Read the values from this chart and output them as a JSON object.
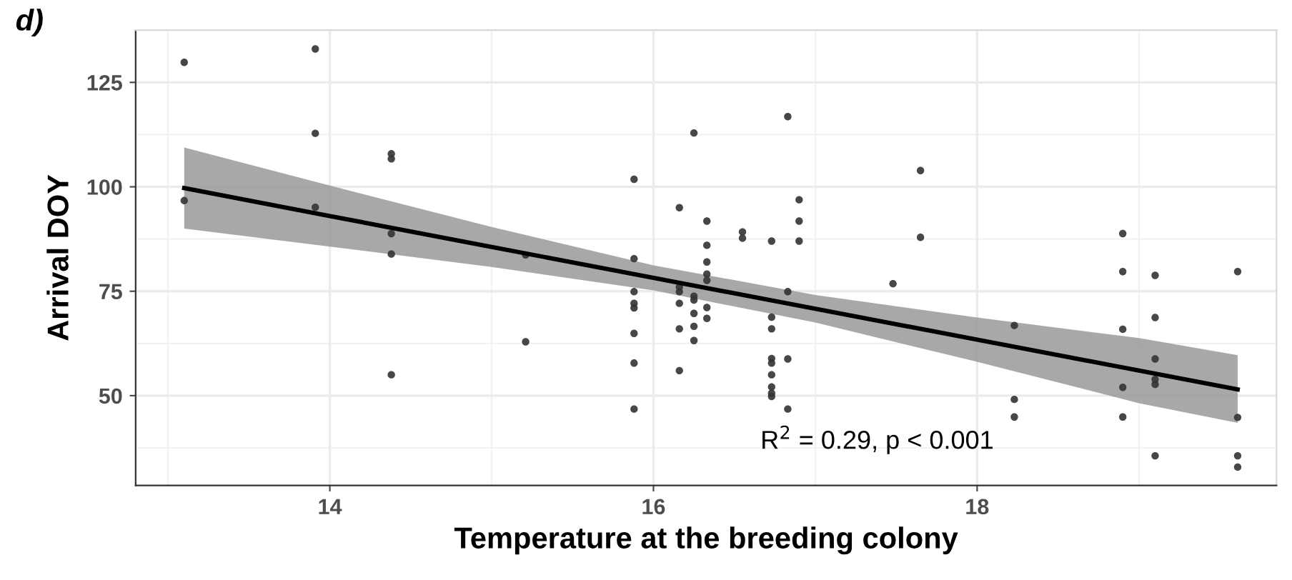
{
  "chart_data": {
    "type": "scatter",
    "title": "d)",
    "xlabel": "Temperature at the breeding colony",
    "ylabel": "Arrival DOY",
    "annotations": [
      "R$^{2}$ = 0.29, p < 0.001"
    ],
    "xlim": [
      12.8,
      19.85
    ],
    "ylim": [
      28.5,
      137.5
    ],
    "xticks": [
      14,
      16,
      18
    ],
    "yticks": [
      50,
      75,
      100,
      125
    ],
    "grid": true,
    "marker": "circle",
    "legend": false,
    "series": [
      {
        "color": "#333333",
        "x": [
          13.1,
          13.91,
          13.91,
          14.38,
          14.38,
          13.1,
          13.91,
          14.38,
          14.38,
          15.21,
          15.21,
          14.38,
          15.88,
          15.88,
          15.88,
          15.88,
          15.88,
          15.88,
          15.88,
          15.88,
          16.16,
          16.16,
          16.16,
          16.16,
          16.16,
          16.16,
          16.25,
          16.25,
          16.25,
          16.25,
          16.25,
          16.25,
          16.33,
          16.33,
          16.33,
          16.33,
          16.33,
          16.33,
          16.33,
          16.55,
          16.55,
          16.73,
          16.73,
          16.73,
          16.73,
          16.73,
          16.73,
          16.73,
          16.73,
          16.73,
          16.83,
          16.83,
          16.83,
          16.83,
          16.9,
          16.9,
          16.9,
          17.48,
          17.65,
          17.65,
          18.23,
          18.23,
          18.23,
          18.9,
          18.9,
          18.9,
          18.9,
          18.9,
          19.1,
          19.1,
          19.1,
          19.1,
          19.1,
          19.1,
          19.61,
          19.61,
          19.61,
          19.61
        ],
        "values": [
          129.8,
          133.0,
          112.8,
          107.9,
          106.7,
          96.7,
          95.1,
          88.8,
          83.9,
          83.7,
          62.9,
          55.0,
          101.8,
          82.8,
          74.9,
          72.1,
          71.0,
          64.9,
          57.8,
          46.8,
          95.0,
          76.0,
          74.9,
          72.1,
          66.0,
          56.0,
          112.9,
          73.8,
          72.9,
          69.7,
          66.6,
          63.2,
          91.8,
          86.0,
          82.0,
          79.1,
          77.6,
          71.1,
          68.5,
          89.2,
          87.7,
          87.0,
          68.8,
          66.0,
          58.9,
          57.8,
          55.0,
          52.1,
          50.6,
          49.8,
          116.8,
          74.9,
          58.8,
          46.8,
          96.9,
          91.8,
          87.0,
          76.8,
          103.9,
          87.9,
          66.8,
          49.1,
          44.9,
          88.8,
          79.7,
          65.9,
          52.0,
          44.9,
          78.8,
          68.7,
          58.8,
          53.9,
          52.7,
          35.6,
          79.7,
          44.8,
          35.6,
          32.9
        ]
      },
      {
        "type": "line",
        "color": "#000000",
        "marker": "none",
        "line_style": "solid",
        "x": [
          13.1,
          14,
          15,
          16,
          17,
          18,
          19,
          19.61
        ],
        "values": [
          99.7,
          93.0,
          85.6,
          78.2,
          70.8,
          63.4,
          56.0,
          51.5
        ],
        "lower": [
          90.0,
          85.7,
          80.8,
          75.2,
          67.5,
          58.1,
          48.2,
          43.5
        ],
        "upper": [
          109.4,
          100.3,
          90.4,
          81.2,
          74.1,
          68.7,
          63.8,
          59.7
        ]
      }
    ]
  }
}
